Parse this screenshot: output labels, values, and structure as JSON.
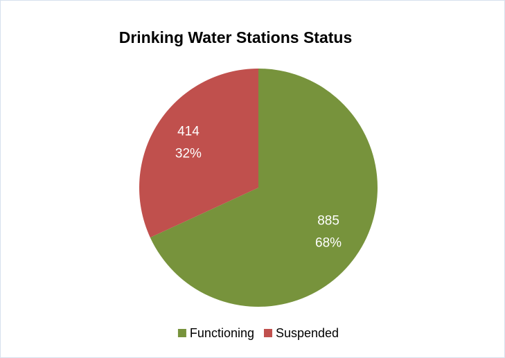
{
  "chart_data": {
    "type": "pie",
    "title": "Drinking Water Stations Status",
    "categories": [
      "Functioning",
      "Suspended"
    ],
    "values": [
      885,
      414
    ],
    "percent_labels": [
      "68%",
      "32%"
    ],
    "colors": [
      "#77933c",
      "#c0504d"
    ],
    "legend": "bottom"
  }
}
